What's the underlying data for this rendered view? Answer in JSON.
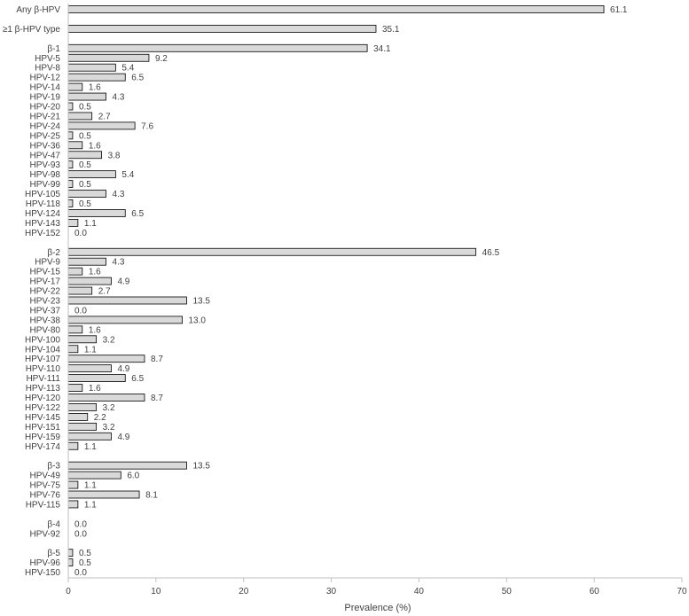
{
  "chart_data": {
    "type": "bar",
    "orientation": "horizontal",
    "xlabel": "Prevalence (%)",
    "xlim": [
      0,
      70
    ],
    "xticks": [
      0,
      10,
      20,
      30,
      40,
      50,
      60,
      70
    ],
    "grid": false,
    "legend": "none",
    "bar_color": "#d9d9d9",
    "bar_stroke": "#000000",
    "categories": [
      "Any β-HPV",
      "",
      "≥1 β-HPV type",
      "",
      "β-1",
      "HPV-5",
      "HPV-8",
      "HPV-12",
      "HPV-14",
      "HPV-19",
      "HPV-20",
      "HPV-21",
      "HPV-24",
      "HPV-25",
      "HPV-36",
      "HPV-47",
      "HPV-93",
      "HPV-98",
      "HPV-99",
      "HPV-105",
      "HPV-118",
      "HPV-124",
      "HPV-143",
      "HPV-152",
      "",
      "β-2",
      "HPV-9",
      "HPV-15",
      "HPV-17",
      "HPV-22",
      "HPV-23",
      "HPV-37",
      "HPV-38",
      "HPV-80",
      "HPV-100",
      "HPV-104",
      "HPV-107",
      "HPV-110",
      "HPV-111",
      "HPV-113",
      "HPV-120",
      "HPV-122",
      "HPV-145",
      "HPV-151",
      "HPV-159",
      "HPV-174",
      "",
      "β-3",
      "HPV-49",
      "HPV-75",
      "HPV-76",
      "HPV-115",
      "",
      "β-4",
      "HPV-92",
      "",
      "β-5",
      "HPV-96",
      "HPV-150"
    ],
    "values": [
      61.1,
      null,
      35.1,
      null,
      34.1,
      9.2,
      5.4,
      6.5,
      1.6,
      4.3,
      0.5,
      2.7,
      7.6,
      0.5,
      1.6,
      3.8,
      0.5,
      5.4,
      0.5,
      4.3,
      0.5,
      6.5,
      1.1,
      0.0,
      null,
      46.5,
      4.3,
      1.6,
      4.9,
      2.7,
      13.5,
      0.0,
      13.0,
      1.6,
      3.2,
      1.1,
      8.7,
      4.9,
      6.5,
      1.6,
      8.7,
      3.2,
      2.2,
      3.2,
      4.9,
      1.1,
      null,
      13.5,
      6.0,
      1.1,
      8.1,
      1.1,
      null,
      0.0,
      0.0,
      null,
      0.5,
      0.5,
      0.0
    ],
    "value_labels": [
      "61.1",
      "",
      "35.1",
      "",
      "34.1",
      "9.2",
      "5.4",
      "6.5",
      "1.6",
      "4.3",
      "0.5",
      "2.7",
      "7.6",
      "0.5",
      "1.6",
      "3.8",
      "0.5",
      "5.4",
      "0.5",
      "4.3",
      "0.5",
      "6.5",
      "1.1",
      "0.0",
      "",
      "46.5",
      "4.3",
      "1.6",
      "4.9",
      "2.7",
      "13.5",
      "0.0",
      "13.0",
      "1.6",
      "3.2",
      "1.1",
      "8.7",
      "4.9",
      "6.5",
      "1.6",
      "8.7",
      "3.2",
      "2.2",
      "3.2",
      "4.9",
      "1.1",
      "",
      "13.5",
      "6.0",
      "1.1",
      "8.1",
      "1.1",
      "",
      "0.0",
      "0.0",
      "",
      "0.5",
      "0.5",
      "0.0"
    ]
  }
}
